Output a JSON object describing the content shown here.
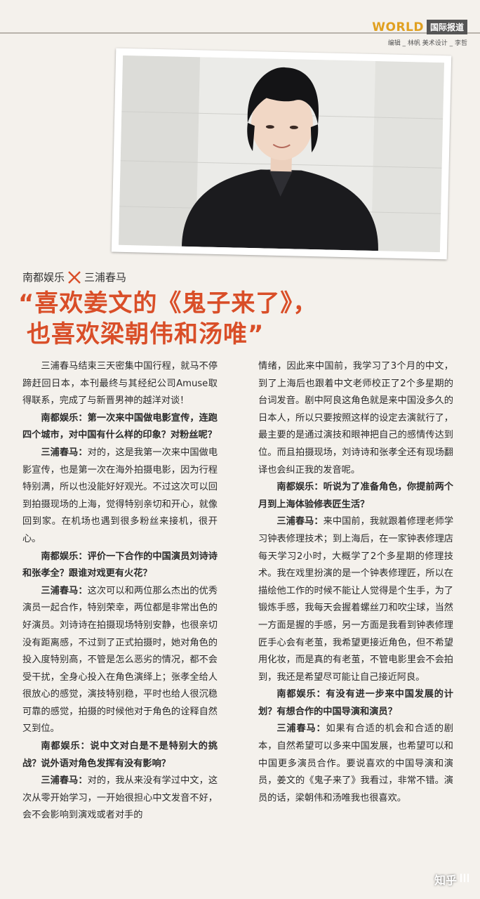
{
  "header": {
    "brand": "WORLD",
    "section": "国际报道",
    "credits": "编辑 _ 林帆  美术设计 _ 李哲"
  },
  "subhead": {
    "left": "南都娱乐",
    "right": "三浦春马"
  },
  "headline": {
    "line1": "“喜欢姜文的《鬼子来了》，",
    "line2": "也喜欢梁朝伟和汤唯”"
  },
  "article": {
    "left": [
      {
        "text": "三浦春马结束三天密集中国行程，就马不停蹄赶回日本，本刊最终与其经纪公司Amuse取得联系，完成了与新晋男神的越洋对谈！"
      },
      {
        "q": "南都娱乐：第一次来中国做电影宣传，连跑四个城市，对中国有什么样的印象？对粉丝呢？"
      },
      {
        "speaker": "三浦春马：",
        "text": "对的，这是我第一次来中国做电影宣传，也是第一次在海外拍摄电影，因为行程特别满，所以也没能好好观光。不过这次可以回到拍摄现场的上海，觉得特别亲切和开心，就像回到家。在机场也遇到很多粉丝来接机，很开心。"
      },
      {
        "q": "南都娱乐：评价一下合作的中国演员刘诗诗和张孝全？跟谁对戏更有火花？"
      },
      {
        "speaker": "三浦春马：",
        "text": "这次可以和两位那么杰出的优秀演员一起合作，特别荣幸，两位都是非常出色的好演员。刘诗诗在拍摄现场特别安静，也很亲切没有距离感，不过到了正式拍摄时，她对角色的投入度特别高，不管是怎么恶劣的情况，都不会受干扰，全身心投入在角色演绎上；张孝全给人很放心的感觉，演技特别稳，平时也给人很沉稳可靠的感觉，拍摄的时候他对于角色的诠释自然又到位。"
      },
      {
        "q": "南都娱乐：说中文对白是不是特别大的挑战？说外语对角色发挥有没有影响？"
      },
      {
        "speaker": "三浦春马：",
        "text": "对的，我从来没有学过中文，这次从零开始学习，一开始很担心中文发音不好，会不会影响到演戏或者对手的"
      }
    ],
    "right": [
      {
        "cont": "情绪，因此来中国前，我学习了3个月的中文，到了上海后也跟着中文老师校正了2个多星期的台词发音。剧中阿良这角色就是来中国没多久的日本人，所以只要按照这样的设定去演就行了，最主要的是通过演技和眼神把自己的感情传达到位。而且拍摄现场，刘诗诗和张孝全还有现场翻译也会纠正我的发音呢。"
      },
      {
        "q": "南都娱乐：听说为了准备角色，你提前两个月到上海体验修表匠生活？"
      },
      {
        "speaker": "三浦春马：",
        "text": "来中国前，我就跟着修理老师学习钟表修理技术；到上海后，在一家钟表修理店每天学习2小时，大概学了2个多星期的修理技术。我在戏里扮演的是一个钟表修理匠，所以在描绘他工作的时候不能让人觉得是个生手，为了锻炼手感，我每天会握着螺丝刀和吹尘球，当然一方面是握的手感，另一方面是我看到钟表修理匠手心会有老茧，我希望更接近角色，但不希望用化妆，而是真的有老茧，不管电影里会不会拍到，我还是希望尽可能让自己接近阿良。"
      },
      {
        "q": "南都娱乐：有没有进一步来中国发展的计划？有想合作的中国导演和演员？"
      },
      {
        "speaker": "三浦春马：",
        "text": "如果有合适的机会和合适的剧本，自然希望可以多来中国发展，也希望可以和中国更多演员合作。要说喜欢的中国导演和演员，姜文的《鬼子来了》我看过，非常不错。演员的话，梁朝伟和汤唯我也很喜欢。"
      }
    ]
  },
  "watermark": {
    "text": "知乎"
  }
}
